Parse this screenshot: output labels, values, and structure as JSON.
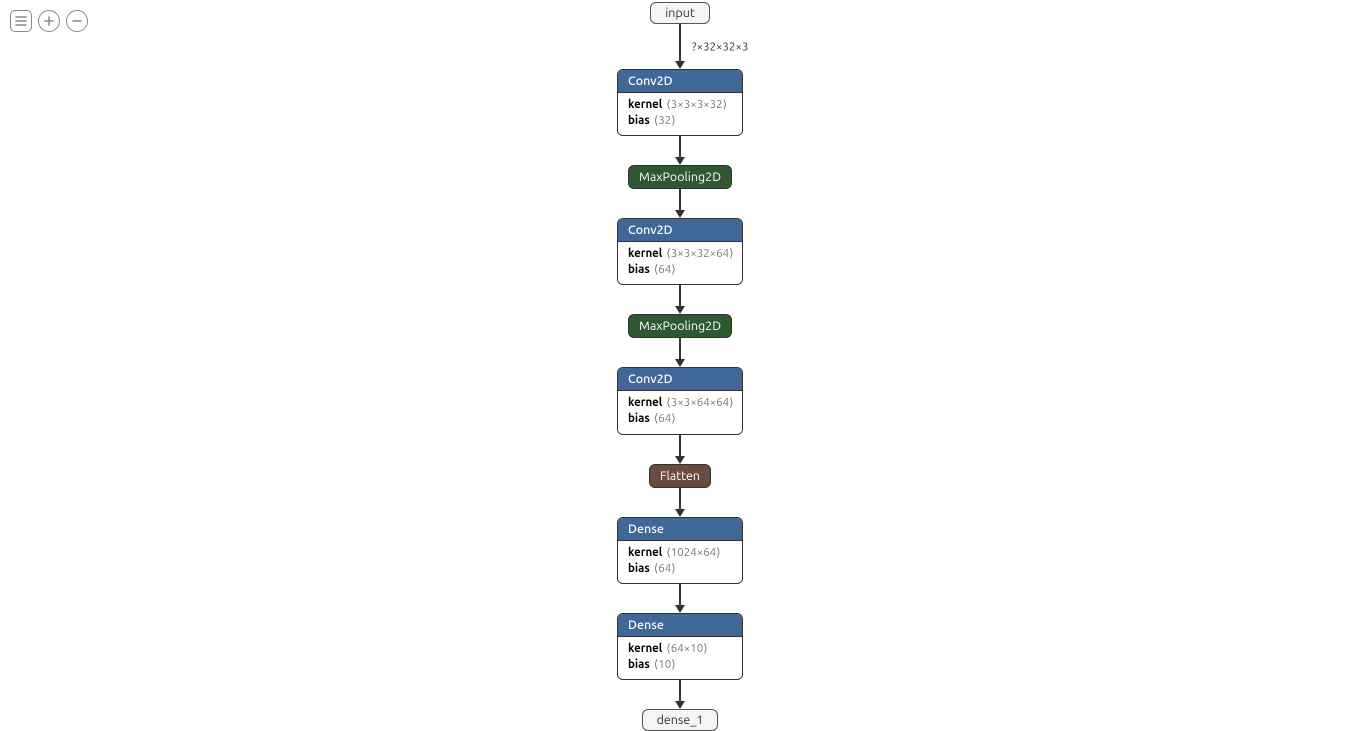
{
  "colors": {
    "conv_header_bg": "#3f6797",
    "conv_header_fg": "#ffffff",
    "pool_bg": "#2f5730",
    "pool_fg": "#ffffff",
    "flatten_bg": "#6b4a42",
    "flatten_fg": "#ffffff",
    "dense_header_bg": "#3f6797",
    "dense_header_fg": "#ffffff",
    "node_border": "#333333",
    "bg": "#ffffff"
  },
  "layout": {
    "layer_box_width": 126,
    "edge_length_default": 22,
    "edge_length_first": 38
  },
  "toolbar": {
    "menu_title": "menu",
    "zoom_in_title": "zoom in",
    "zoom_out_title": "zoom out"
  },
  "graph": {
    "input": {
      "label": "input"
    },
    "edge_input_shape": "?×32×32×3",
    "layers": [
      {
        "type": "conv",
        "title": "Conv2D",
        "params": [
          {
            "name": "kernel",
            "shape": "⟨3×3×3×32⟩"
          },
          {
            "name": "bias",
            "shape": "⟨32⟩"
          }
        ]
      },
      {
        "type": "pool",
        "title": "MaxPooling2D"
      },
      {
        "type": "conv",
        "title": "Conv2D",
        "params": [
          {
            "name": "kernel",
            "shape": "⟨3×3×32×64⟩"
          },
          {
            "name": "bias",
            "shape": "⟨64⟩"
          }
        ]
      },
      {
        "type": "pool",
        "title": "MaxPooling2D"
      },
      {
        "type": "conv",
        "title": "Conv2D",
        "params": [
          {
            "name": "kernel",
            "shape": "⟨3×3×64×64⟩"
          },
          {
            "name": "bias",
            "shape": "⟨64⟩"
          }
        ]
      },
      {
        "type": "flatten",
        "title": "Flatten"
      },
      {
        "type": "dense",
        "title": "Dense",
        "params": [
          {
            "name": "kernel",
            "shape": "⟨1024×64⟩"
          },
          {
            "name": "bias",
            "shape": "⟨64⟩"
          }
        ]
      },
      {
        "type": "dense",
        "title": "Dense",
        "params": [
          {
            "name": "kernel",
            "shape": "⟨64×10⟩"
          },
          {
            "name": "bias",
            "shape": "⟨10⟩"
          }
        ]
      }
    ],
    "output": {
      "label": "dense_1"
    }
  }
}
